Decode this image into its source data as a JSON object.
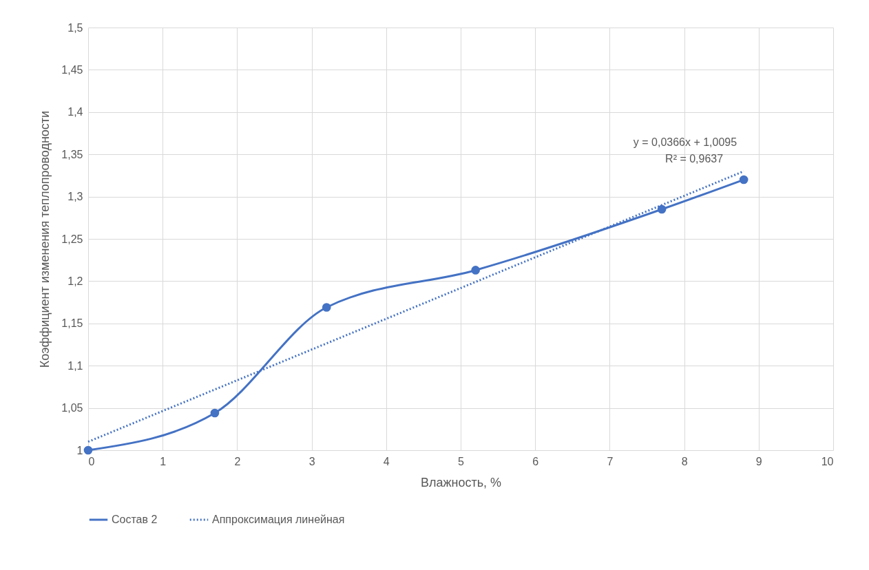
{
  "chart_data": {
    "type": "line",
    "xlabel": "Влажность, %",
    "ylabel": "Коэффициент изменения теплопроводности",
    "series": [
      {
        "name": "Состав 2",
        "color": "#4472c4",
        "x": [
          0,
          1.7,
          3.2,
          5.2,
          7.7,
          8.8
        ],
        "values": [
          1,
          1.044,
          1.169,
          1.213,
          1.285,
          1.32
        ],
        "marker": "circle",
        "line_style": "solid"
      },
      {
        "name": "Аппроксимация линейная",
        "color": "#4472c4",
        "x": [
          0,
          8.8
        ],
        "values": [
          1.01,
          1.33
        ],
        "marker": "none",
        "line_style": "dotted"
      }
    ],
    "xlim": [
      0,
      10
    ],
    "xticks": [
      0,
      1,
      2,
      3,
      4,
      5,
      6,
      7,
      8,
      9,
      10
    ],
    "ylim": [
      1,
      1.5
    ],
    "yticks": [
      1,
      {
        "value": 1.05,
        "label": "1,05"
      },
      {
        "value": 1.1,
        "label": "1,1"
      },
      {
        "value": 1.15,
        "label": "1,15"
      },
      {
        "value": 1.2,
        "label": "1,2"
      },
      {
        "value": 1.25,
        "label": "1,25"
      },
      {
        "value": 1.3,
        "label": "1,3"
      },
      {
        "value": 1.35,
        "label": "1,35"
      },
      {
        "value": 1.4,
        "label": "1,4"
      },
      {
        "value": 1.45,
        "label": "1,45"
      },
      {
        "value": 1.5,
        "label": "1,5"
      }
    ],
    "annotations": [
      "y = 0,0366x + 1,0095",
      "R² = 0,9637"
    ],
    "grid": true,
    "legend": "bottom"
  }
}
